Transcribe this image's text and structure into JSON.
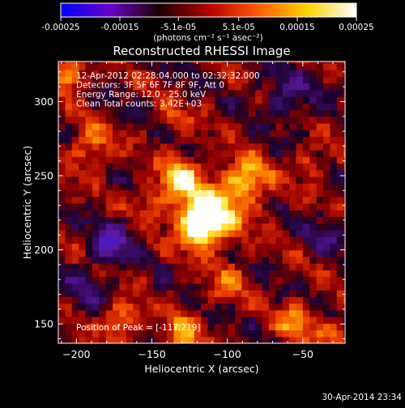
{
  "colorbar": {
    "ticks": [
      "-0.00025",
      "-0.00015",
      "-5.1e-05",
      "5.1e-05",
      "0.00015",
      "0.00025"
    ],
    "units": "(photons cm⁻² s⁻¹ asec⁻²)",
    "stops": [
      "#0000ff",
      "#6a00c8",
      "#1a0000",
      "#b40000",
      "#ff5a00",
      "#ffd200",
      "#ffffff"
    ]
  },
  "footer": {
    "timestamp": "30-Apr-2014 23:34"
  },
  "chart_data": {
    "type": "heatmap",
    "title": "Reconstructed RHESSI Image",
    "xlabel": "Heliocentric X (arcsec)",
    "ylabel": "Heliocentric Y (arcsec)",
    "xlim": [
      -212,
      -22
    ],
    "ylim": [
      137,
      327
    ],
    "xticks": [
      -200,
      -150,
      -100,
      -50
    ],
    "yticks": [
      150,
      200,
      250,
      300
    ],
    "clim": [
      -0.00025,
      0.00025
    ],
    "annotations": [
      "12-Apr-2012 02:28:04.000 to 02:32:32.000",
      "Detectors: 3F 5F 6F 7F 8F 9F, Att 0",
      "Energy Range: 12.0 - 25.0 keV",
      "Clean    Total counts: 3.42E+03"
    ],
    "peak_label": "Position of Peak = [-117,219]",
    "peak": [
      -117,
      219
    ],
    "sources": [
      {
        "x": -117,
        "y": 219,
        "amp": 0.0003,
        "sigma": 10
      },
      {
        "x": -132,
        "y": 250,
        "amp": 0.00017,
        "sigma": 9
      },
      {
        "x": -86,
        "y": 248,
        "amp": 0.00016,
        "sigma": 10
      },
      {
        "x": -108,
        "y": 228,
        "amp": 0.00014,
        "sigma": 16
      },
      {
        "x": -150,
        "y": 232,
        "amp": 0.0001,
        "sigma": 8
      },
      {
        "x": -205,
        "y": 318,
        "amp": 0.00018,
        "sigma": 7
      },
      {
        "x": -190,
        "y": 270,
        "amp": 0.00011,
        "sigma": 10
      },
      {
        "x": -170,
        "y": 153,
        "amp": 0.00014,
        "sigma": 8
      },
      {
        "x": -130,
        "y": 143,
        "amp": 0.00013,
        "sigma": 9
      },
      {
        "x": -100,
        "y": 178,
        "amp": 9e-05,
        "sigma": 9
      },
      {
        "x": -55,
        "y": 152,
        "amp": 0.00012,
        "sigma": 9
      },
      {
        "x": -30,
        "y": 145,
        "amp": 0.00012,
        "sigma": 6
      },
      {
        "x": -45,
        "y": 260,
        "amp": 8e-05,
        "sigma": 8
      },
      {
        "x": -135,
        "y": 290,
        "amp": 7e-05,
        "sigma": 7
      },
      {
        "x": -177,
        "y": 205,
        "amp": -0.00017,
        "sigma": 9
      },
      {
        "x": -60,
        "y": 305,
        "amp": -9e-05,
        "sigma": 12
      },
      {
        "x": -35,
        "y": 210,
        "amp": -7e-05,
        "sigma": 10
      },
      {
        "x": -195,
        "y": 175,
        "amp": -7e-05,
        "sigma": 10
      }
    ]
  }
}
